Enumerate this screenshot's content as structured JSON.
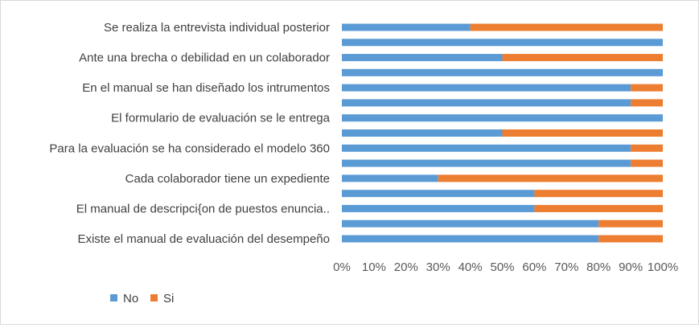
{
  "chart_data": {
    "type": "bar",
    "orientation": "horizontal",
    "stacked": "percent",
    "title": "",
    "xlabel": "",
    "ylabel": "",
    "xlim": [
      0,
      100
    ],
    "x_ticks": [
      "0%",
      "10%",
      "20%",
      "30%",
      "40%",
      "50%",
      "60%",
      "70%",
      "80%",
      "90%",
      "100%"
    ],
    "grid": false,
    "legend_position": "bottom-left",
    "categories": [
      "Se realiza la entrevista individual posterior",
      "",
      "Ante una brecha o debilidad en un colaborador",
      "",
      "En el manual se han diseñado los intrumentos",
      "",
      "El  formulario de evaluación se le entrega",
      "",
      "Para la evaluación se ha considerado el modelo 360",
      "",
      "Cada colaborador tiene un expediente",
      "",
      "El manual de descripci{on de puestos enuncia..",
      "",
      "Existe el manual de evaluación del desempeño"
    ],
    "series": [
      {
        "name": "No",
        "color": "#5b9bd5",
        "values": [
          40,
          100,
          50,
          100,
          90,
          90,
          100,
          50,
          90,
          90,
          30,
          60,
          60,
          80,
          80
        ]
      },
      {
        "name": "Si",
        "color": "#ed7d31",
        "values": [
          60,
          0,
          50,
          0,
          10,
          10,
          0,
          50,
          10,
          10,
          70,
          40,
          40,
          20,
          20
        ]
      }
    ]
  }
}
